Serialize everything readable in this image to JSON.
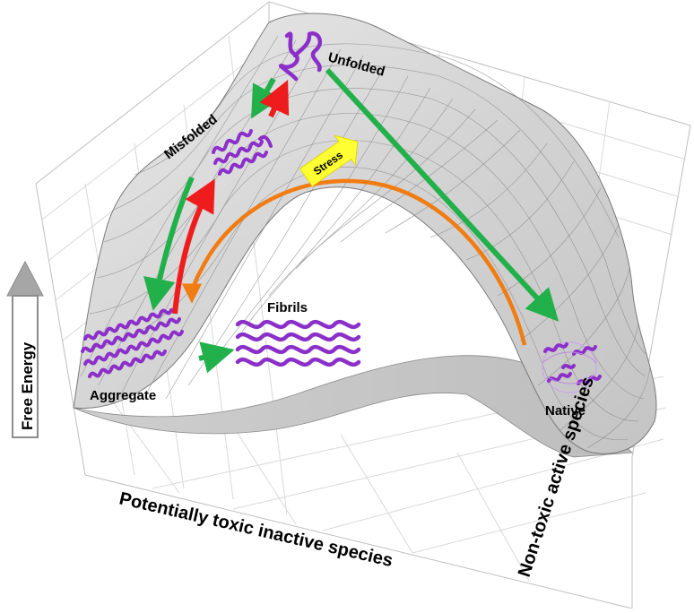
{
  "axes": {
    "vertical": "Free Energy",
    "left_axis": "Potentially toxic inactive species",
    "right_axis": "Non-toxic active species"
  },
  "states": {
    "unfolded": "Unfolded",
    "misfolded": "Misfolded",
    "aggregate": "Aggregate",
    "fibrils": "Fibrils",
    "native": "Native"
  },
  "annotations": {
    "stress": "Stress"
  },
  "colors": {
    "surface": "#d6d6d6",
    "mesh": "#8a8a8a",
    "protein": "#8b2fc9",
    "forward_arrow": "#22b04a",
    "reverse_arrow": "#ee1c1c",
    "stress_path": "#f07c12",
    "stress_marker": "#ffff33"
  }
}
